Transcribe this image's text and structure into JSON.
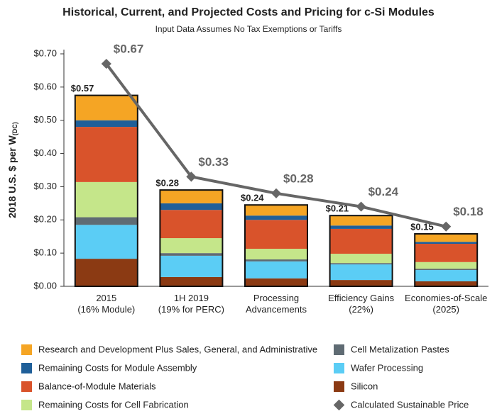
{
  "chart_data": {
    "type": "stacked_bar",
    "title": "Historical, Current, and Projected Costs and Pricing for c-Si Modules",
    "subtitle": "Input Data Assumes No Tax Exemptions or Tariffs",
    "y_label": "2018 U.S. $ per W",
    "y_label_sub": "(DC)",
    "categories": [
      [
        "2015",
        "(16% Module)"
      ],
      [
        "1H 2019",
        "(19% for PERC)"
      ],
      [
        "Processing",
        "Advancements"
      ],
      [
        "Efficiency Gains",
        "(22%)"
      ],
      [
        "Economies-of-Scale",
        "(2025)"
      ]
    ],
    "ylim": [
      0,
      0.7
    ],
    "yticks": [
      {
        "value": 0,
        "label": "$0.00"
      },
      {
        "value": 0.1,
        "label": "$0.10"
      },
      {
        "value": 0.2,
        "label": "$0.20"
      },
      {
        "value": 0.3,
        "label": "$0.30"
      },
      {
        "value": 0.4,
        "label": "$0.40"
      },
      {
        "value": 0.5,
        "label": "$0.50"
      },
      {
        "value": 0.6,
        "label": "$0.60"
      },
      {
        "value": 0.7,
        "label": "$0.70"
      }
    ],
    "series": [
      {
        "name": "Silicon",
        "color": "#8b3a13",
        "values": [
          0.083,
          0.028,
          0.024,
          0.019,
          0.015
        ]
      },
      {
        "name": "Wafer Processing",
        "color": "#5bcdf5",
        "values": [
          0.102,
          0.064,
          0.051,
          0.047,
          0.034
        ]
      },
      {
        "name": "Cell Metalization Pastes",
        "color": "#5f6b73",
        "values": [
          0.023,
          0.008,
          0.006,
          0.004,
          0.004
        ]
      },
      {
        "name": "Remaining Costs for Cell Fabrication",
        "color": "#c5e68a",
        "values": [
          0.106,
          0.045,
          0.032,
          0.028,
          0.02
        ]
      },
      {
        "name": "Balance-of-Module Materials",
        "color": "#d9532b",
        "values": [
          0.166,
          0.085,
          0.087,
          0.075,
          0.055
        ]
      },
      {
        "name": "Remaining Costs for Module Assembly",
        "color": "#1f5f99",
        "values": [
          0.02,
          0.02,
          0.013,
          0.01,
          0.006
        ]
      },
      {
        "name": "Research and Development Plus Sales, General, and Administrative",
        "color": "#f5a524",
        "values": [
          0.075,
          0.04,
          0.032,
          0.03,
          0.024
        ]
      }
    ],
    "totals": {
      "values": [
        0.57,
        0.28,
        0.24,
        0.21,
        0.15
      ],
      "value_labels": [
        "$0.57",
        "$0.28",
        "$0.24",
        "$0.21",
        "$0.15"
      ]
    },
    "line": {
      "name": "Calculated Sustainable Price",
      "color": "#666666",
      "values": [
        0.67,
        0.33,
        0.28,
        0.24,
        0.18
      ],
      "value_labels": [
        "$0.67",
        "$0.33",
        "$0.28",
        "$0.24",
        "$0.18"
      ]
    }
  }
}
